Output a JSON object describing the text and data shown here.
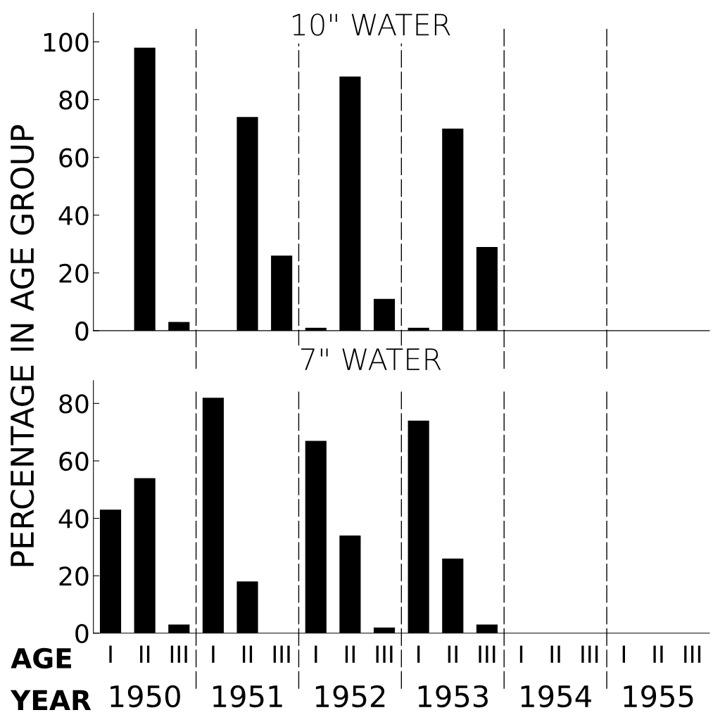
{
  "chart_data": [
    {
      "type": "bar",
      "title": "10\" WATER",
      "ylabel": "PERCENTAGE IN AGE GROUP",
      "categories": [
        null,
        null,
        null,
        null,
        null,
        null,
        null,
        null,
        null,
        null,
        null,
        null,
        null,
        null,
        null,
        null,
        null,
        null
      ],
      "values": [
        0,
        98,
        3,
        0,
        74,
        26,
        1,
        88,
        11,
        1,
        70,
        29,
        0,
        0,
        0,
        0,
        0,
        0
      ],
      "color": "#000000",
      "ylim": [
        0,
        110
      ],
      "yticks": [
        0,
        20,
        40,
        60,
        80,
        100
      ],
      "tick_labels": "y",
      "grid": false,
      "legend": false
    },
    {
      "type": "bar",
      "title": "7\" WATER",
      "categories": [
        "I",
        "II",
        "III",
        "I",
        "II",
        "III",
        "I",
        "II",
        "III",
        "I",
        "II",
        "III",
        "I",
        "II",
        "III",
        "I",
        "II",
        "III"
      ],
      "values": [
        43,
        54,
        3,
        82,
        18,
        0,
        67,
        34,
        2,
        74,
        26,
        3,
        0,
        0,
        0,
        0,
        0,
        0
      ],
      "color": "#000000",
      "ylim": [
        0,
        88
      ],
      "yticks": [
        0,
        20,
        40,
        60,
        80
      ],
      "grid": false,
      "legend": false,
      "annotations": [
        "AGE",
        "YEAR",
        "1950",
        "1951",
        "1952",
        "1953",
        "1954",
        "1955"
      ]
    }
  ]
}
